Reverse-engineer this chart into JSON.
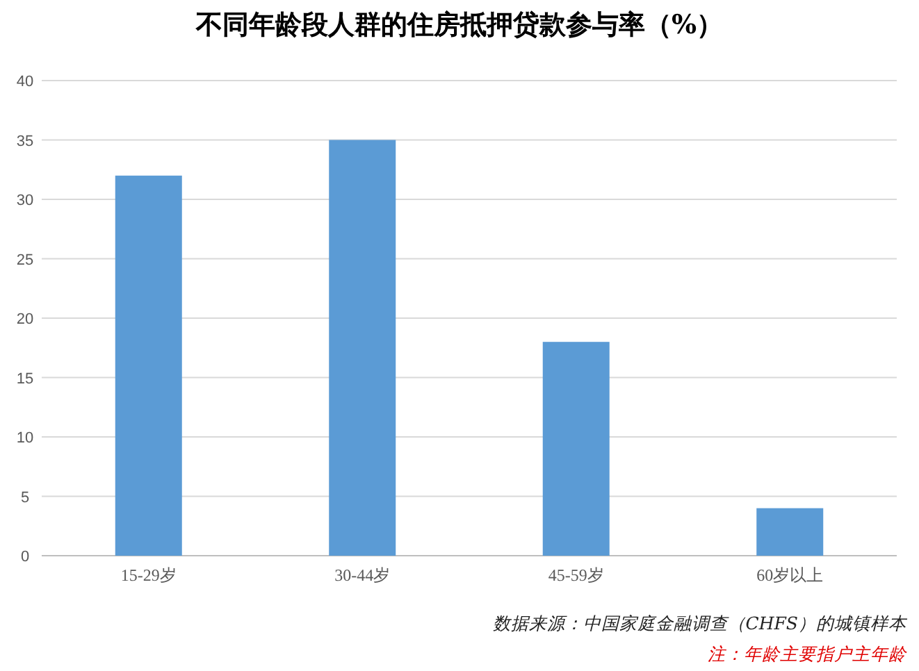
{
  "chart_data": {
    "type": "bar",
    "title": "不同年龄段人群的住房抵押贷款参与率（%）",
    "categories": [
      "15-29岁",
      "30-44岁",
      "45-59岁",
      "60岁以上"
    ],
    "values": [
      32,
      35,
      18,
      4
    ],
    "color": "#5b9bd5",
    "ylim": [
      0,
      40
    ],
    "yticks": [
      0,
      5,
      10,
      15,
      20,
      25,
      30,
      35,
      40
    ],
    "grid": "y",
    "annotations": [
      "数据来源：中国家庭金融调查（CHFS）的城镇样本",
      "注：年龄主要指户主年龄"
    ]
  }
}
